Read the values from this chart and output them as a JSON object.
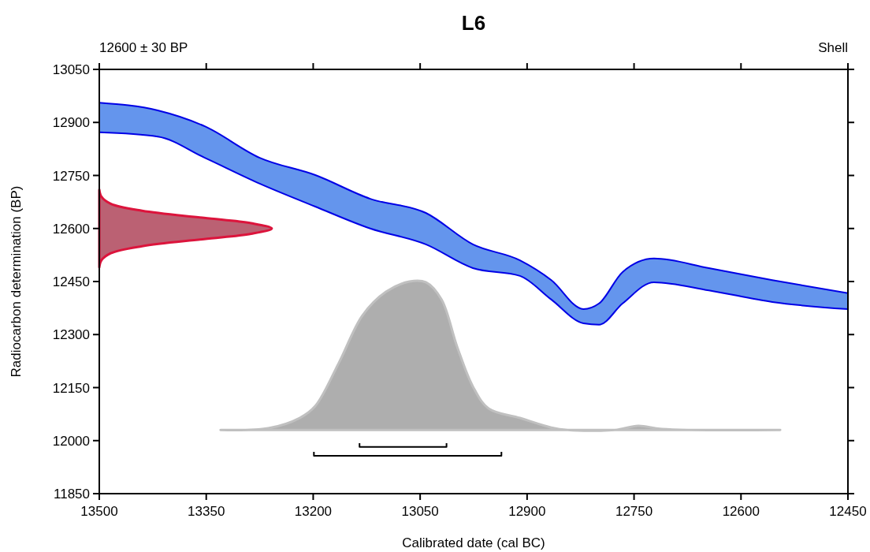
{
  "chart_data": {
    "type": "line",
    "title": "L6",
    "xlabel": "Calibrated date (cal BC)",
    "ylabel": "Radiocarbon determination (BP)",
    "annotations": [
      "12600 ± 30 BP",
      "Shell"
    ],
    "xlim": [
      13500,
      12450
    ],
    "ylim": [
      11850,
      13050
    ],
    "xticks": [
      13500,
      13350,
      13200,
      13050,
      12900,
      12750,
      12600,
      12450
    ],
    "yticks": [
      11850,
      12000,
      12150,
      12300,
      12450,
      12600,
      12750,
      12900,
      13050
    ],
    "grid": false,
    "series": [
      {
        "color": "#0000e6",
        "x": [
          13500,
          13418,
          13352,
          13275,
          13197,
          13120,
          13042,
          12976,
          12910,
          12866,
          12821,
          12799,
          12766,
          12722,
          12645,
          12556,
          12450
        ],
        "values": [
          12956,
          12934,
          12889,
          12800,
          12751,
          12684,
          12644,
          12555,
          12510,
          12454,
          12372,
          12388,
          12477,
          12515,
          12488,
          12454,
          12417
        ],
        "lower": [
          12872,
          12860,
          12800,
          12727,
          12662,
          12600,
          12555,
          12488,
          12466,
          12399,
          12332,
          12328,
          12388,
          12448,
          12425,
          12392,
          12372
        ],
        "upper": [
          12956,
          12934,
          12889,
          12800,
          12751,
          12684,
          12644,
          12555,
          12510,
          12454,
          12372,
          12388,
          12477,
          12515,
          12488,
          12454,
          12417
        ]
      },
      {
        "color": "#0000e6",
        "x": [
          13500,
          13418,
          13352,
          13275,
          13197,
          13120,
          13042,
          12976,
          12910,
          12866,
          12821,
          12799,
          12766,
          12722,
          12645,
          12556,
          12450
        ],
        "values": [
          12872,
          12860,
          12800,
          12727,
          12662,
          12600,
          12555,
          12488,
          12466,
          12399,
          12332,
          12328,
          12388,
          12448,
          12425,
          12392,
          12372
        ]
      },
      {
        "type": "area",
        "color": "#dc143c",
        "x": [
          13500,
          13497,
          13484,
          13440,
          13353,
          13287,
          13258,
          13287,
          13353,
          13440,
          13484,
          13497,
          13500
        ],
        "values": [
          12710,
          12690,
          12670,
          12650,
          12630,
          12615,
          12600,
          12585,
          12570,
          12550,
          12530,
          12510,
          12490
        ]
      },
      {
        "type": "area",
        "color": "#c0c0c0",
        "x": [
          13330,
          13263,
          13219,
          13197,
          13164,
          13131,
          13098,
          13065,
          13042,
          13020,
          12998,
          12976,
          12954,
          12910,
          12866,
          12843,
          12777,
          12744,
          12711,
          12545
        ],
        "values": [
          12030,
          12035,
          12064,
          12098,
          12220,
          12354,
          12421,
          12450,
          12448,
          12399,
          12265,
          12153,
          12091,
          12064,
          12037,
          12030,
          12030,
          12042,
          12033,
          12030
        ]
      },
      {
        "color": "#000000",
        "x": [
          13135,
          13135,
          13013,
          13013
        ],
        "values": [
          11993,
          11982,
          11982,
          11993
        ]
      },
      {
        "color": "#000000",
        "x": [
          13199,
          13199,
          12936,
          12936
        ],
        "values": [
          11968,
          11957,
          11957,
          11968
        ]
      }
    ]
  }
}
